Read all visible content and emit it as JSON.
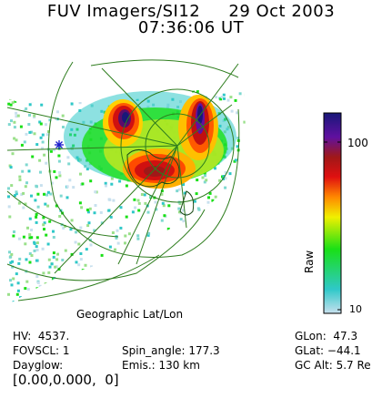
{
  "header": {
    "title_line1": "FUV Imagers/SI12     29 Oct 2003",
    "title_line2": "07:36:06 UT"
  },
  "map": {
    "projection_label": "Geographic Lat/Lon",
    "marker_icon": "asterisk-icon",
    "marker_color": "#1a1acc",
    "grid_color": "#2e7d1e"
  },
  "colorbar": {
    "axis_label": "Raw",
    "tick_labels": [
      "10",
      "100"
    ],
    "colors_bottom_to_top": [
      "#c8e0ee",
      "#2fc8c8",
      "#19e016",
      "#f0f000",
      "#ff8800",
      "#e01010",
      "#a01818",
      "#6010a0",
      "#181878"
    ],
    "scale": "log"
  },
  "info": {
    "hv": "HV:  4537.",
    "fovscl": "FOVSCL: 1",
    "dayglow": "Dayglow:",
    "dayglow_values": "[0.00,0.000,  0]",
    "spin_angle": "Spin_angle: 177.3",
    "emis": "Emis.: 130 km",
    "glon": "GLon:  47.3",
    "glat": "GLat: −44.1",
    "gc_alt": "GC Alt: 5.7 Re"
  }
}
